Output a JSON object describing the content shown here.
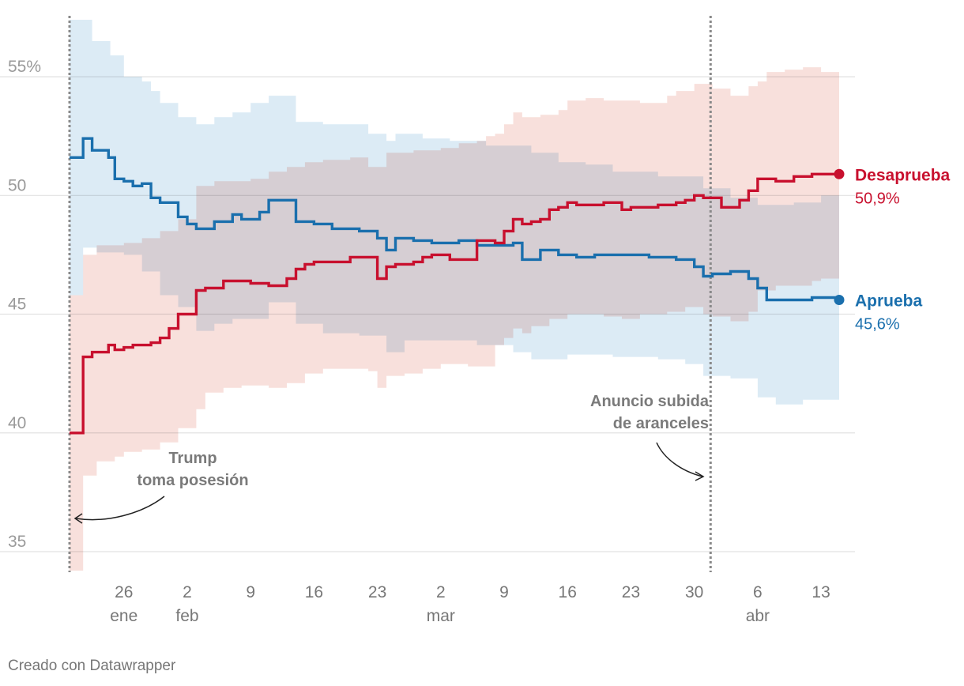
{
  "chart_data": {
    "type": "line",
    "y_ticks": [
      {
        "value": 55,
        "label": "55%"
      },
      {
        "value": 50,
        "label": "50"
      },
      {
        "value": 45,
        "label": "45"
      },
      {
        "value": 40,
        "label": "40"
      },
      {
        "value": 35,
        "label": "35"
      }
    ],
    "ylim": [
      34.2,
      57.5
    ],
    "x_range_days": [
      0,
      85
    ],
    "x_ticks": [
      {
        "day": 6,
        "label": "26",
        "sub": "ene"
      },
      {
        "day": 13,
        "label": "2",
        "sub": "feb"
      },
      {
        "day": 20,
        "label": "9",
        "sub": ""
      },
      {
        "day": 27,
        "label": "16",
        "sub": ""
      },
      {
        "day": 34,
        "label": "23",
        "sub": ""
      },
      {
        "day": 41,
        "label": "2",
        "sub": "mar"
      },
      {
        "day": 48,
        "label": "9",
        "sub": ""
      },
      {
        "day": 55,
        "label": "16",
        "sub": ""
      },
      {
        "day": 62,
        "label": "23",
        "sub": ""
      },
      {
        "day": 69,
        "label": "30",
        "sub": ""
      },
      {
        "day": 76,
        "label": "6",
        "sub": "abr"
      },
      {
        "day": 83,
        "label": "13",
        "sub": ""
      }
    ],
    "series": [
      {
        "name": "Aprueba",
        "end_label": "45,6%",
        "color": "#1a6fad",
        "band_color": "#dcebf5",
        "values": [
          [
            0,
            51.6
          ],
          [
            1.5,
            52.4
          ],
          [
            2.5,
            51.9
          ],
          [
            4.3,
            51.6
          ],
          [
            5,
            50.7
          ],
          [
            6,
            50.6
          ],
          [
            7,
            50.4
          ],
          [
            8,
            50.5
          ],
          [
            9,
            49.9
          ],
          [
            10,
            49.7
          ],
          [
            12,
            49.1
          ],
          [
            13,
            48.8
          ],
          [
            14,
            48.6
          ],
          [
            16,
            48.9
          ],
          [
            18,
            49.2
          ],
          [
            19,
            49.0
          ],
          [
            21,
            49.3
          ],
          [
            22,
            49.8
          ],
          [
            25,
            48.9
          ],
          [
            27,
            48.8
          ],
          [
            29,
            48.6
          ],
          [
            32,
            48.5
          ],
          [
            34,
            48.2
          ],
          [
            35,
            47.7
          ],
          [
            36,
            48.2
          ],
          [
            38,
            48.1
          ],
          [
            40,
            48.0
          ],
          [
            43,
            48.1
          ],
          [
            45,
            47.9
          ],
          [
            49,
            48.0
          ],
          [
            50,
            47.3
          ],
          [
            52,
            47.7
          ],
          [
            54,
            47.5
          ],
          [
            56,
            47.4
          ],
          [
            58,
            47.5
          ],
          [
            64,
            47.4
          ],
          [
            67,
            47.3
          ],
          [
            69,
            47.0
          ],
          [
            70,
            46.6
          ],
          [
            71,
            46.7
          ],
          [
            73,
            46.8
          ],
          [
            75,
            46.5
          ],
          [
            76,
            46.1
          ],
          [
            77,
            45.6
          ],
          [
            79,
            45.6
          ],
          [
            81,
            45.6
          ],
          [
            82,
            45.7
          ],
          [
            85,
            45.6
          ]
        ],
        "band_low": [
          [
            0,
            45.8
          ],
          [
            1.5,
            47.8
          ],
          [
            3,
            47.6
          ],
          [
            6,
            47.5
          ],
          [
            8,
            46.8
          ],
          [
            10,
            45.8
          ],
          [
            12,
            45.3
          ],
          [
            14,
            44.3
          ],
          [
            16,
            44.6
          ],
          [
            18,
            44.8
          ],
          [
            22,
            45.5
          ],
          [
            25,
            44.6
          ],
          [
            28,
            44.2
          ],
          [
            32,
            44.1
          ],
          [
            35,
            43.4
          ],
          [
            37,
            43.9
          ],
          [
            40,
            43.9
          ],
          [
            45,
            43.7
          ],
          [
            49,
            43.4
          ],
          [
            51,
            43.1
          ],
          [
            55,
            43.3
          ],
          [
            60,
            43.2
          ],
          [
            65,
            43.1
          ],
          [
            68,
            42.9
          ],
          [
            70,
            42.4
          ],
          [
            73,
            42.3
          ],
          [
            76,
            41.5
          ],
          [
            78,
            41.2
          ],
          [
            81,
            41.4
          ],
          [
            85,
            41.4
          ]
        ],
        "band_high": [
          [
            0,
            57.4
          ],
          [
            2.5,
            56.5
          ],
          [
            4.5,
            55.9
          ],
          [
            6,
            55.0
          ],
          [
            8,
            54.8
          ],
          [
            9,
            54.4
          ],
          [
            10,
            53.9
          ],
          [
            12,
            53.3
          ],
          [
            14,
            53.0
          ],
          [
            16,
            53.3
          ],
          [
            18,
            53.5
          ],
          [
            20,
            53.9
          ],
          [
            22,
            54.2
          ],
          [
            25,
            53.1
          ],
          [
            28,
            53.0
          ],
          [
            31,
            53.0
          ],
          [
            33,
            52.6
          ],
          [
            35,
            52.3
          ],
          [
            36,
            52.6
          ],
          [
            39,
            52.4
          ],
          [
            42,
            52.3
          ],
          [
            46,
            52.1
          ],
          [
            49,
            52.1
          ],
          [
            51,
            51.8
          ],
          [
            54,
            51.4
          ],
          [
            57,
            51.3
          ],
          [
            60,
            51.0
          ],
          [
            65,
            50.8
          ],
          [
            68,
            50.8
          ],
          [
            70,
            50.3
          ],
          [
            73,
            49.9
          ],
          [
            76,
            49.6
          ],
          [
            80,
            49.7
          ],
          [
            83,
            50.0
          ],
          [
            85,
            50.0
          ]
        ]
      },
      {
        "name": "Desaprueba",
        "end_label": "50,9%",
        "color": "#c8102e",
        "band_color": "#f8e0dc",
        "values": [
          [
            0,
            40.0
          ],
          [
            1.5,
            43.2
          ],
          [
            2.5,
            43.4
          ],
          [
            4.3,
            43.7
          ],
          [
            5,
            43.5
          ],
          [
            6,
            43.6
          ],
          [
            7,
            43.7
          ],
          [
            8,
            43.7
          ],
          [
            9,
            43.8
          ],
          [
            10,
            44.0
          ],
          [
            11,
            44.4
          ],
          [
            12,
            45.0
          ],
          [
            14,
            46.0
          ],
          [
            15,
            46.1
          ],
          [
            17,
            46.4
          ],
          [
            20,
            46.3
          ],
          [
            22,
            46.2
          ],
          [
            24,
            46.5
          ],
          [
            25,
            46.9
          ],
          [
            26,
            47.1
          ],
          [
            27,
            47.2
          ],
          [
            29,
            47.2
          ],
          [
            31,
            47.4
          ],
          [
            34,
            46.5
          ],
          [
            35,
            47.0
          ],
          [
            36,
            47.1
          ],
          [
            38,
            47.2
          ],
          [
            39,
            47.4
          ],
          [
            40,
            47.5
          ],
          [
            42,
            47.3
          ],
          [
            45,
            48.1
          ],
          [
            47,
            48.0
          ],
          [
            48,
            48.5
          ],
          [
            49,
            49.0
          ],
          [
            50,
            48.8
          ],
          [
            51,
            48.9
          ],
          [
            52,
            49.0
          ],
          [
            53,
            49.4
          ],
          [
            54,
            49.5
          ],
          [
            55,
            49.7
          ],
          [
            56,
            49.6
          ],
          [
            59,
            49.7
          ],
          [
            61,
            49.4
          ],
          [
            62,
            49.5
          ],
          [
            65,
            49.6
          ],
          [
            67,
            49.7
          ],
          [
            68,
            49.8
          ],
          [
            69,
            50.0
          ],
          [
            70,
            49.9
          ],
          [
            71,
            49.9
          ],
          [
            72,
            49.5
          ],
          [
            74,
            49.8
          ],
          [
            75,
            50.2
          ],
          [
            76,
            50.7
          ],
          [
            78,
            50.6
          ],
          [
            80,
            50.8
          ],
          [
            82,
            50.9
          ],
          [
            85,
            50.9
          ]
        ],
        "band_low": [
          [
            0,
            34.2
          ],
          [
            1.5,
            38.2
          ],
          [
            3,
            38.8
          ],
          [
            5,
            39.0
          ],
          [
            6,
            39.2
          ],
          [
            8,
            39.3
          ],
          [
            10,
            39.6
          ],
          [
            12,
            40.2
          ],
          [
            14,
            41.0
          ],
          [
            15,
            41.7
          ],
          [
            17,
            41.9
          ],
          [
            19,
            42.0
          ],
          [
            22,
            41.9
          ],
          [
            24,
            42.1
          ],
          [
            26,
            42.5
          ],
          [
            28,
            42.7
          ],
          [
            33,
            42.6
          ],
          [
            34,
            41.9
          ],
          [
            35,
            42.4
          ],
          [
            37,
            42.5
          ],
          [
            39,
            42.7
          ],
          [
            41,
            42.9
          ],
          [
            44,
            42.8
          ],
          [
            47,
            43.7
          ],
          [
            48,
            44.0
          ],
          [
            49,
            44.4
          ],
          [
            50,
            44.2
          ],
          [
            51,
            44.5
          ],
          [
            53,
            44.8
          ],
          [
            55,
            45.0
          ],
          [
            59,
            44.9
          ],
          [
            61,
            44.8
          ],
          [
            63,
            45.0
          ],
          [
            66,
            45.1
          ],
          [
            68,
            45.3
          ],
          [
            70,
            45.0
          ],
          [
            71,
            44.9
          ],
          [
            73,
            44.7
          ],
          [
            75,
            45.1
          ],
          [
            76,
            46.0
          ],
          [
            78,
            46.2
          ],
          [
            82,
            46.4
          ],
          [
            83,
            46.5
          ],
          [
            85,
            46.5
          ]
        ],
        "band_high": [
          [
            0,
            45.8
          ],
          [
            1.5,
            47.5
          ],
          [
            3,
            47.9
          ],
          [
            6,
            48.0
          ],
          [
            8,
            48.2
          ],
          [
            10,
            48.5
          ],
          [
            12,
            49.0
          ],
          [
            14,
            50.4
          ],
          [
            16,
            50.6
          ],
          [
            18,
            50.6
          ],
          [
            20,
            50.7
          ],
          [
            22,
            51.0
          ],
          [
            24,
            51.2
          ],
          [
            26,
            51.4
          ],
          [
            28,
            51.5
          ],
          [
            31,
            51.6
          ],
          [
            33,
            51.2
          ],
          [
            35,
            51.8
          ],
          [
            38,
            51.9
          ],
          [
            41,
            52.0
          ],
          [
            43,
            52.2
          ],
          [
            45,
            52.3
          ],
          [
            46,
            52.5
          ],
          [
            47,
            52.6
          ],
          [
            48,
            53.0
          ],
          [
            49,
            53.5
          ],
          [
            50,
            53.3
          ],
          [
            52,
            53.4
          ],
          [
            54,
            53.6
          ],
          [
            55,
            54.0
          ],
          [
            57,
            54.1
          ],
          [
            59,
            54.0
          ],
          [
            63,
            53.9
          ],
          [
            66,
            54.2
          ],
          [
            67,
            54.4
          ],
          [
            69,
            54.7
          ],
          [
            71,
            54.5
          ],
          [
            73,
            54.2
          ],
          [
            75,
            54.6
          ],
          [
            76,
            54.8
          ],
          [
            77,
            55.2
          ],
          [
            79,
            55.3
          ],
          [
            81,
            55.4
          ],
          [
            83,
            55.2
          ],
          [
            85,
            55.2
          ]
        ]
      }
    ],
    "events": [
      {
        "day": 0,
        "label_lines": [
          "Trump",
          "toma posesión"
        ]
      },
      {
        "day": 70.8,
        "label_lines": [
          "Anuncio subida",
          "de aranceles"
        ]
      }
    ]
  },
  "footer": {
    "credit": "Creado con Datawrapper"
  }
}
